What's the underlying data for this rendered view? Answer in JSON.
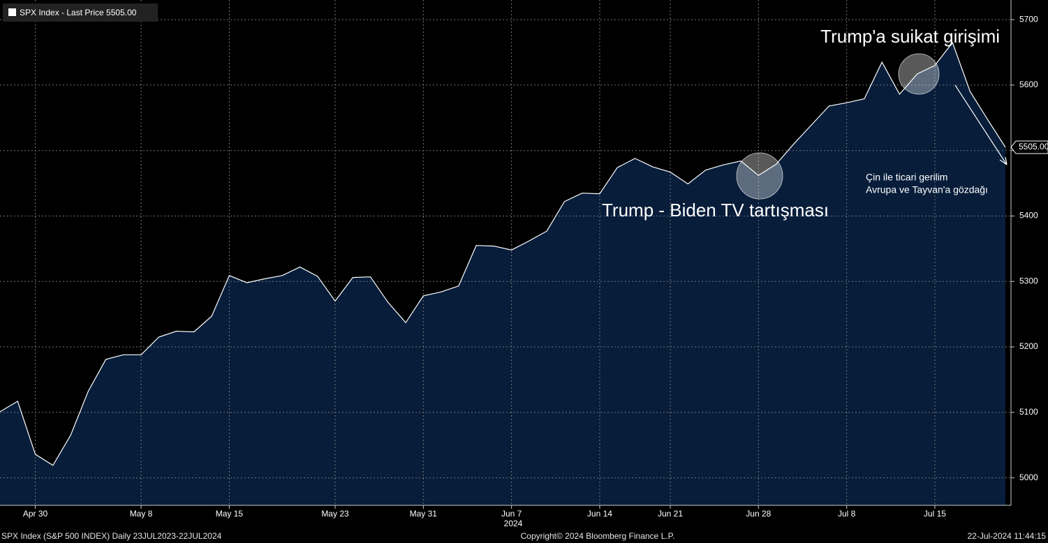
{
  "chart_data": {
    "type": "area",
    "legend_label": "SPX Index - Last Price 5505.00",
    "last_price_label": "5505.00",
    "year_label": "2024",
    "categories": [
      null,
      null,
      "Apr 30",
      null,
      null,
      null,
      null,
      null,
      "May 8",
      null,
      null,
      null,
      null,
      "May 15",
      null,
      null,
      null,
      null,
      null,
      "May 23",
      null,
      null,
      null,
      null,
      "May 31",
      null,
      null,
      null,
      null,
      "Jun 7",
      null,
      null,
      null,
      null,
      "Jun 14",
      null,
      null,
      null,
      "Jun 21",
      null,
      null,
      null,
      null,
      "Jun 28",
      null,
      null,
      null,
      null,
      "Jul 8",
      null,
      null,
      null,
      null,
      "Jul 15",
      null,
      null,
      null,
      null
    ],
    "series": [
      {
        "name": "SPX Index",
        "color": "#ffffff",
        "fill": "#071d3a",
        "values": [
          5101,
          5117,
          5036,
          5019,
          5065,
          5132,
          5181,
          5188,
          5188,
          5215,
          5224,
          5223,
          5247,
          5309,
          5298,
          5304,
          5309,
          5322,
          5308,
          5270,
          5306,
          5307,
          5268,
          5237,
          5278,
          5284,
          5293,
          5355,
          5354,
          5348,
          5362,
          5377,
          5422,
          5435,
          5434,
          5474,
          5488,
          5475,
          5467,
          5449,
          5470,
          5478,
          5484,
          5462,
          5479,
          5510,
          5539,
          5568,
          5573,
          5579,
          5635,
          5586,
          5617,
          5630,
          5665,
          5590,
          5547,
          5505
        ]
      }
    ],
    "ylim": [
      4958,
      5730
    ],
    "yticks": [
      5000,
      5100,
      5200,
      5300,
      5400,
      5500,
      5600,
      5700
    ],
    "grid": true,
    "annotations": [
      "Trump'a suikat girişimi",
      "Trump - Biden TV tartışması",
      "Çin ile ticari gerilim",
      "Avrupa ve Tayvan'a gözdağı"
    ],
    "footer_left": "SPX Index (S&P 500 INDEX)  Daily 23JUL2023-22JUL2024",
    "footer_center": "Copyright© 2024 Bloomberg Finance L.P.",
    "footer_right": "22-Jul-2024 11:44:15"
  }
}
